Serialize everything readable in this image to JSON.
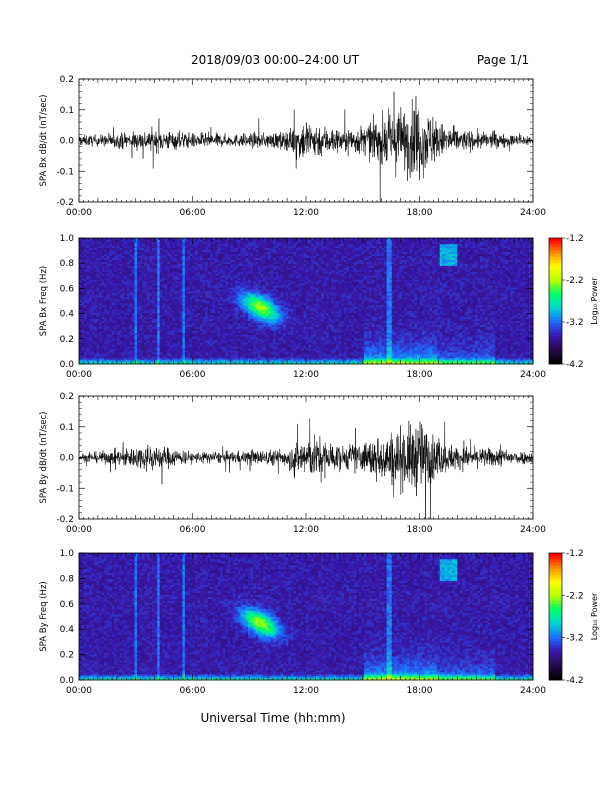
{
  "header": {
    "title": "2018/09/03  00:00–24:00 UT",
    "page": "Page 1/1"
  },
  "colorbar": {
    "label": "Log₁₀ Power",
    "ticks": [
      "-1.2",
      "-2.2",
      "-3.2",
      "-4.2"
    ],
    "range": [
      -4.2,
      -1.2
    ],
    "colors": [
      "#000000",
      "#2a0a55",
      "#3a18b0",
      "#1e6fff",
      "#00d6d0",
      "#00ff66",
      "#b4ff00",
      "#ffff00",
      "#ff9000",
      "#ff0000"
    ]
  },
  "chart_data": [
    {
      "type": "line",
      "ylabel": "SPA Bx dB/dt (nT/sec)",
      "ylim": [
        -0.2,
        0.2
      ],
      "yticks": [
        "0.2",
        "0.1",
        "0.0",
        "-0.1",
        "-0.2"
      ],
      "xlim": [
        "00:00",
        "24:00"
      ],
      "xticks": [
        "00:00",
        "06:00",
        "12:00",
        "18:00",
        "24:00"
      ],
      "envelope": {
        "x_hours": [
          0,
          1,
          2,
          3,
          4,
          5,
          6,
          7,
          8,
          9,
          10,
          11,
          12,
          13,
          14,
          15,
          16,
          17,
          18,
          19,
          20,
          21,
          22,
          23,
          24
        ],
        "amplitude": [
          0.03,
          0.03,
          0.04,
          0.05,
          0.06,
          0.05,
          0.04,
          0.04,
          0.03,
          0.04,
          0.04,
          0.05,
          0.12,
          0.08,
          0.06,
          0.08,
          0.12,
          0.18,
          0.2,
          0.1,
          0.06,
          0.05,
          0.04,
          0.03,
          0.03
        ]
      }
    },
    {
      "type": "heatmap",
      "ylabel": "SPA Bx Freq (Hz)",
      "ylim": [
        0.0,
        1.0
      ],
      "yticks": [
        "1.0",
        "0.8",
        "0.6",
        "0.4",
        "0.2",
        "0.0"
      ],
      "xlim": [
        "00:00",
        "24:00"
      ],
      "xticks": [
        "00:00",
        "06:00",
        "12:00",
        "18:00",
        "24:00"
      ],
      "colorbar_label": "Log₁₀ Power"
    },
    {
      "type": "line",
      "ylabel": "SPA By dB/dt (nT/sec)",
      "ylim": [
        -0.2,
        0.2
      ],
      "yticks": [
        "0.2",
        "0.1",
        "0.0",
        "-0.1",
        "-0.2"
      ],
      "xlim": [
        "00:00",
        "24:00"
      ],
      "xticks": [
        "00:00",
        "06:00",
        "12:00",
        "18:00",
        "24:00"
      ],
      "envelope": {
        "x_hours": [
          0,
          1,
          2,
          3,
          4,
          5,
          6,
          7,
          8,
          9,
          10,
          11,
          12,
          13,
          14,
          15,
          16,
          17,
          18,
          19,
          20,
          21,
          22,
          23,
          24
        ],
        "amplitude": [
          0.02,
          0.03,
          0.04,
          0.06,
          0.07,
          0.05,
          0.03,
          0.03,
          0.03,
          0.04,
          0.04,
          0.05,
          0.12,
          0.1,
          0.06,
          0.08,
          0.12,
          0.16,
          0.2,
          0.1,
          0.06,
          0.05,
          0.05,
          0.04,
          0.03
        ]
      }
    },
    {
      "type": "heatmap",
      "ylabel": "SPA By Freq (Hz)",
      "ylim": [
        0.0,
        1.0
      ],
      "yticks": [
        "1.0",
        "0.8",
        "0.6",
        "0.4",
        "0.2",
        "0.0"
      ],
      "xlim": [
        "00:00",
        "24:00"
      ],
      "xticks": [
        "00:00",
        "06:00",
        "12:00",
        "18:00",
        "24:00"
      ],
      "colorbar_label": "Log₁₀ Power"
    }
  ],
  "xlabel": "Universal Time (hh:mm)"
}
